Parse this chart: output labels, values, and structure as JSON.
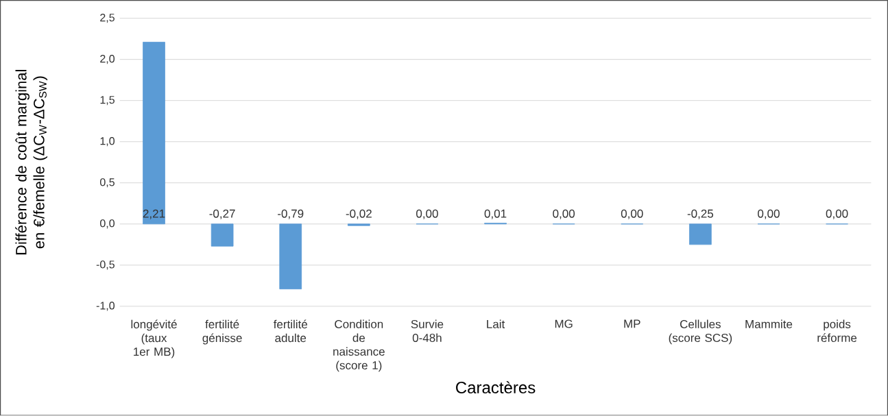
{
  "chart_data": {
    "type": "bar",
    "xlabel": "Caractères",
    "ylabel": "Différence de coût marginal en €/femelle (ΔC$_{W}$-ΔC$_{SW}$)",
    "categories": [
      "longévité (taux 1er MB)",
      "fertilité génisse",
      "fertilité adulte",
      "Condition de naissance (score 1)",
      "Survie 0-48h",
      "Lait",
      "MG",
      "MP",
      "Cellules (score SCS)",
      "Mammite",
      "poids réforme"
    ],
    "values": [
      2.21,
      -0.27,
      -0.79,
      -0.02,
      0.0,
      0.01,
      0.0,
      0.0,
      -0.25,
      0.0,
      0.0
    ],
    "value_labels": [
      "2,21",
      "-0,27",
      "-0,79",
      "-0,02",
      "0,00",
      "0,01",
      "0,00",
      "0,00",
      "-0,25",
      "0,00",
      "0,00"
    ],
    "color": "#5b9bd5",
    "ylim": [
      -1.0,
      2.5
    ],
    "yticks": [
      {
        "value": -1.0,
        "label": "-1,0"
      },
      {
        "value": -0.5,
        "label": "-0,5"
      },
      {
        "value": 0.0,
        "label": "0,0"
      },
      {
        "value": 0.5,
        "label": "0,5"
      },
      {
        "value": 1.0,
        "label": "1,0"
      },
      {
        "value": 1.5,
        "label": "1,5"
      },
      {
        "value": 2.0,
        "label": "2,0"
      },
      {
        "value": 2.5,
        "label": "2,5"
      }
    ],
    "grid": "y"
  }
}
